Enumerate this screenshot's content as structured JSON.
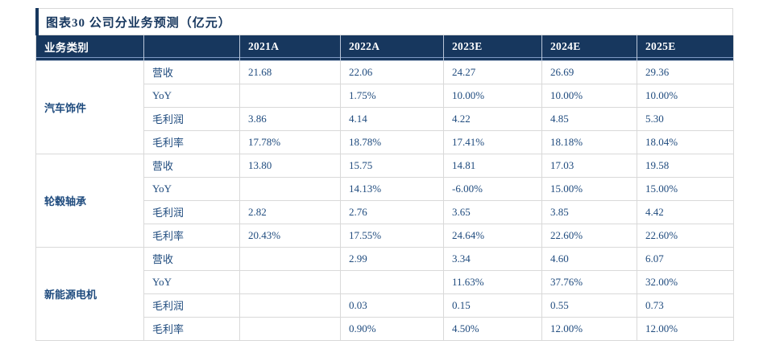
{
  "title": "图表30 公司分业务预测（亿元）",
  "colors": {
    "header-bg": "#17375E",
    "body-text": "#1F4B7E",
    "grid": "#D9D9D9",
    "header-sep": "#B9C6D9",
    "header-underline": "#7C97C2",
    "page-bg": "#FFFFFF"
  },
  "table": {
    "header": [
      "业务类别",
      "",
      "2021A",
      "2022A",
      "2023E",
      "2024E",
      "2025E"
    ],
    "sections": [
      {
        "name": "汽车饰件",
        "rows": [
          {
            "metric": "营收",
            "values": [
              "21.68",
              "22.06",
              "24.27",
              "26.69",
              "29.36"
            ]
          },
          {
            "metric": "YoY",
            "values": [
              "",
              "1.75%",
              "10.00%",
              "10.00%",
              "10.00%"
            ]
          },
          {
            "metric": "毛利润",
            "values": [
              "3.86",
              "4.14",
              "4.22",
              "4.85",
              "5.30"
            ]
          },
          {
            "metric": "毛利率",
            "values": [
              "17.78%",
              "18.78%",
              "17.41%",
              "18.18%",
              "18.04%"
            ]
          }
        ]
      },
      {
        "name": "轮毂轴承",
        "rows": [
          {
            "metric": "营收",
            "values": [
              "13.80",
              "15.75",
              "14.81",
              "17.03",
              "19.58"
            ]
          },
          {
            "metric": "YoY",
            "values": [
              "",
              "14.13%",
              "-6.00%",
              "15.00%",
              "15.00%"
            ]
          },
          {
            "metric": "毛利润",
            "values": [
              "2.82",
              "2.76",
              "3.65",
              "3.85",
              "4.42"
            ]
          },
          {
            "metric": "毛利率",
            "values": [
              "20.43%",
              "17.55%",
              "24.64%",
              "22.60%",
              "22.60%"
            ]
          }
        ]
      },
      {
        "name": "新能源电机",
        "rows": [
          {
            "metric": "营收",
            "values": [
              "",
              "2.99",
              "3.34",
              "4.60",
              "6.07"
            ]
          },
          {
            "metric": "YoY",
            "values": [
              "",
              "",
              "11.63%",
              "37.76%",
              "32.00%"
            ]
          },
          {
            "metric": "毛利润",
            "values": [
              "",
              "0.03",
              "0.15",
              "0.55",
              "0.73"
            ]
          },
          {
            "metric": "毛利率",
            "values": [
              "",
              "0.90%",
              "4.50%",
              "12.00%",
              "12.00%"
            ]
          }
        ]
      }
    ]
  }
}
